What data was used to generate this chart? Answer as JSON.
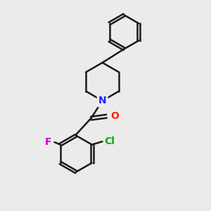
{
  "background_color": "#ebebeb",
  "bond_color": "#1a1a1a",
  "bond_width": 1.8,
  "N_color": "#2222ff",
  "O_color": "#ff2200",
  "F_color": "#cc00cc",
  "Cl_color": "#00aa00",
  "figsize": [
    3.0,
    3.0
  ],
  "dpi": 100,
  "xlim": [
    0,
    10
  ],
  "ylim": [
    0,
    10
  ]
}
